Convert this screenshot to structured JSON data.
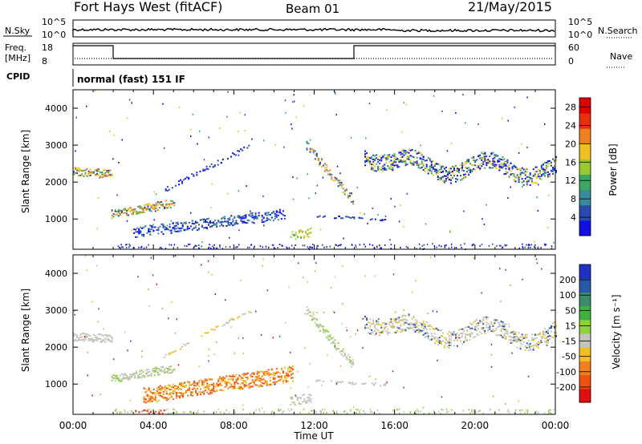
{
  "header": {
    "station": "Fort Hays West (fitACF)",
    "beam": "Beam 01",
    "date": "21/May/2015"
  },
  "panels": {
    "nsky_label": "N.Sky",
    "nsearch_label": "N.Search",
    "freq_label_1": "Freq.",
    "freq_label_2": "[MHz]",
    "nave_label": "Nave",
    "cpid_label": "CPID",
    "cpid_text": "normal (fast) 151 IF",
    "noise_ticks": [
      "10^5",
      "10^0"
    ],
    "freq_ticks": [
      "18",
      "8"
    ],
    "nave_ticks": [
      "60",
      "0"
    ]
  },
  "colors": {
    "scatter_gray": "#c4c4bc",
    "plot_border": "#000000"
  },
  "chart_data": [
    {
      "type": "heatmap",
      "name": "power",
      "ylabel": "Slant Range [km]",
      "xlabel": "Time UT",
      "x_ticks": [
        "00:00",
        "04:00",
        "08:00",
        "12:00",
        "16:00",
        "20:00",
        "00:00"
      ],
      "x_range_hours": [
        0,
        24
      ],
      "y_ticks": [
        1000,
        2000,
        3000,
        4000
      ],
      "ylim": [
        180,
        4500
      ],
      "colorbar": {
        "label": "Power [dB]",
        "ticks": [
          4,
          8,
          12,
          16,
          20,
          24,
          28
        ],
        "range": [
          0,
          30
        ],
        "colors": [
          "#1010e0",
          "#2a4ab0",
          "#3a8a9a",
          "#3aa860",
          "#9ac830",
          "#f0c020",
          "#f08020",
          "#e83010",
          "#e00000"
        ]
      },
      "features": [
        {
          "from_h": 0.0,
          "to_h": 1.9,
          "range_start": 2300,
          "range_end": 2250,
          "width": 220,
          "density": 0.9,
          "colors": [
            "#3aa860",
            "#f0c020",
            "#2a4ab0",
            "#f08020"
          ]
        },
        {
          "from_h": 1.9,
          "to_h": 5.0,
          "range_start": 1150,
          "range_end": 1450,
          "width": 220,
          "density": 0.9,
          "colors": [
            "#f08020",
            "#f0c020",
            "#3aa860",
            "#2a4ab0"
          ]
        },
        {
          "from_h": 4.5,
          "to_h": 8.8,
          "range_start": 1800,
          "range_end": 3000,
          "width": 120,
          "density": 0.45,
          "colors": [
            "#1010e0",
            "#2a4ab0"
          ]
        },
        {
          "from_h": 3.0,
          "to_h": 10.5,
          "range_start": 650,
          "range_end": 1150,
          "width": 280,
          "density": 0.65,
          "colors": [
            "#1010e0",
            "#2a4ab0",
            "#3a8a9a"
          ]
        },
        {
          "from_h": 10.8,
          "to_h": 11.8,
          "range_start": 550,
          "range_end": 650,
          "width": 250,
          "density": 0.7,
          "colors": [
            "#3aa860",
            "#9ac830",
            "#f0c020"
          ]
        },
        {
          "from_h": 11.6,
          "to_h": 13.9,
          "range_start": 3000,
          "range_end": 1550,
          "width": 250,
          "density": 0.85,
          "colors": [
            "#2a4ab0",
            "#3a8a9a",
            "#f0c020",
            "#f08020"
          ]
        },
        {
          "from_h": 12.0,
          "to_h": 15.5,
          "range_start": 1100,
          "range_end": 1000,
          "width": 60,
          "density": 0.35,
          "colors": [
            "#1010e0",
            "#2a4ab0"
          ]
        },
        {
          "from_h": 14.5,
          "to_h": 24.0,
          "range_start": 2500,
          "range_end": 2350,
          "width": 450,
          "density": 0.7,
          "wave": true,
          "colors": [
            "#1010e0",
            "#2a4ab0",
            "#3aa860",
            "#f0c020"
          ]
        }
      ]
    },
    {
      "type": "heatmap",
      "name": "velocity",
      "ylabel": "Slant Range [km]",
      "xlabel": "Time UT",
      "x_ticks": [
        "00:00",
        "04:00",
        "08:00",
        "12:00",
        "16:00",
        "20:00",
        "00:00"
      ],
      "x_range_hours": [
        0,
        24
      ],
      "y_ticks": [
        1000,
        2000,
        3000,
        4000
      ],
      "ylim": [
        180,
        4500
      ],
      "colorbar": {
        "label": "Velocity [m s⁻¹]",
        "ticks": [
          "200",
          "100",
          "50",
          "15",
          "-15",
          "-50",
          "-100",
          "-200"
        ],
        "colors": [
          "#2030c0",
          "#2858a8",
          "#3a8c6a",
          "#40b040",
          "#90d040",
          "#c4c4bc",
          "#f0c020",
          "#f08020",
          "#f05010",
          "#e01010"
        ]
      },
      "features": [
        {
          "from_h": 0.0,
          "to_h": 1.9,
          "range_start": 2300,
          "range_end": 2250,
          "width": 220,
          "density": 0.9,
          "colors": [
            "#c4c4bc"
          ]
        },
        {
          "from_h": 1.9,
          "to_h": 5.0,
          "range_start": 1150,
          "range_end": 1450,
          "width": 220,
          "density": 0.85,
          "colors": [
            "#c4c4bc",
            "#c4c4bc",
            "#90d040"
          ]
        },
        {
          "from_h": 4.5,
          "to_h": 8.8,
          "range_start": 1800,
          "range_end": 3000,
          "width": 120,
          "density": 0.3,
          "colors": [
            "#c4c4bc",
            "#f0c020"
          ]
        },
        {
          "from_h": 3.5,
          "to_h": 10.9,
          "range_start": 700,
          "range_end": 1300,
          "width": 420,
          "density": 0.85,
          "colors": [
            "#f08020",
            "#f0c020",
            "#f05010"
          ]
        },
        {
          "from_h": 3.0,
          "to_h": 4.5,
          "range_start": 250,
          "range_end": 250,
          "width": 120,
          "density": 0.8,
          "colors": [
            "#e01010",
            "#f05010"
          ]
        },
        {
          "from_h": 10.8,
          "to_h": 11.8,
          "range_start": 550,
          "range_end": 650,
          "width": 250,
          "density": 0.7,
          "colors": [
            "#c4c4bc"
          ]
        },
        {
          "from_h": 11.6,
          "to_h": 13.9,
          "range_start": 3000,
          "range_end": 1550,
          "width": 250,
          "density": 0.75,
          "colors": [
            "#90d040",
            "#c4c4bc",
            "#c4c4bc"
          ]
        },
        {
          "from_h": 12.0,
          "to_h": 15.5,
          "range_start": 1100,
          "range_end": 1000,
          "width": 60,
          "density": 0.35,
          "colors": [
            "#c4c4bc"
          ]
        },
        {
          "from_h": 14.5,
          "to_h": 24.0,
          "range_start": 2500,
          "range_end": 2350,
          "width": 450,
          "density": 0.6,
          "wave": true,
          "colors": [
            "#c4c4bc",
            "#c4c4bc",
            "#c4c4bc",
            "#f0c020",
            "#2858a8"
          ]
        }
      ]
    }
  ]
}
